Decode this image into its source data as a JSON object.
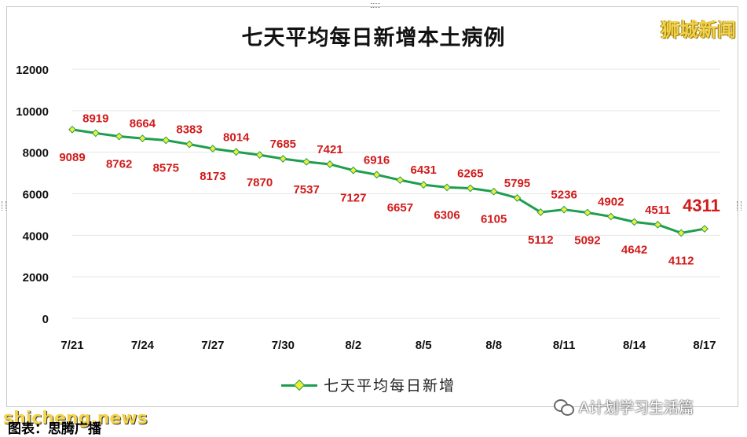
{
  "title": "七天平均每日新增本土病例",
  "brand": "狮城新闻",
  "legend_label": "七天平均每日新增",
  "wechat_label": "A计划学习生活篇",
  "site_watermark": "shicheng.news",
  "caption": "图表：思腾广播",
  "colors": {
    "line": "#1e9e4e",
    "marker_fill": "#f0ec3a",
    "data_label": "#d11a1a",
    "grid": "#e6e6e6"
  },
  "chart_data": {
    "type": "line",
    "title": "七天平均每日新增本土病例",
    "x": [
      "7/21",
      "7/22",
      "7/23",
      "7/24",
      "7/25",
      "7/26",
      "7/27",
      "7/28",
      "7/29",
      "7/30",
      "7/31",
      "8/1",
      "8/2",
      "8/3",
      "8/4",
      "8/5",
      "8/6",
      "8/7",
      "8/8",
      "8/9",
      "8/10",
      "8/11",
      "8/12",
      "8/13",
      "8/14",
      "8/15",
      "8/16",
      "8/17"
    ],
    "x_tick_labels": [
      "7/21",
      "7/24",
      "7/27",
      "7/30",
      "8/2",
      "8/5",
      "8/8",
      "8/11",
      "8/14",
      "8/17"
    ],
    "series": [
      {
        "name": "七天平均每日新增",
        "values": [
          9089,
          8919,
          8762,
          8664,
          8575,
          8383,
          8173,
          8014,
          7870,
          7685,
          7537,
          7421,
          7127,
          6916,
          6657,
          6431,
          6306,
          6265,
          6105,
          5795,
          5112,
          5236,
          5092,
          4902,
          4642,
          4511,
          4112,
          4311
        ]
      }
    ],
    "ylim": [
      0,
      12000
    ],
    "y_ticks": [
      0,
      2000,
      4000,
      6000,
      8000,
      10000,
      12000
    ],
    "grid": true,
    "legend_position": "bottom",
    "highlight_last": "4311"
  }
}
